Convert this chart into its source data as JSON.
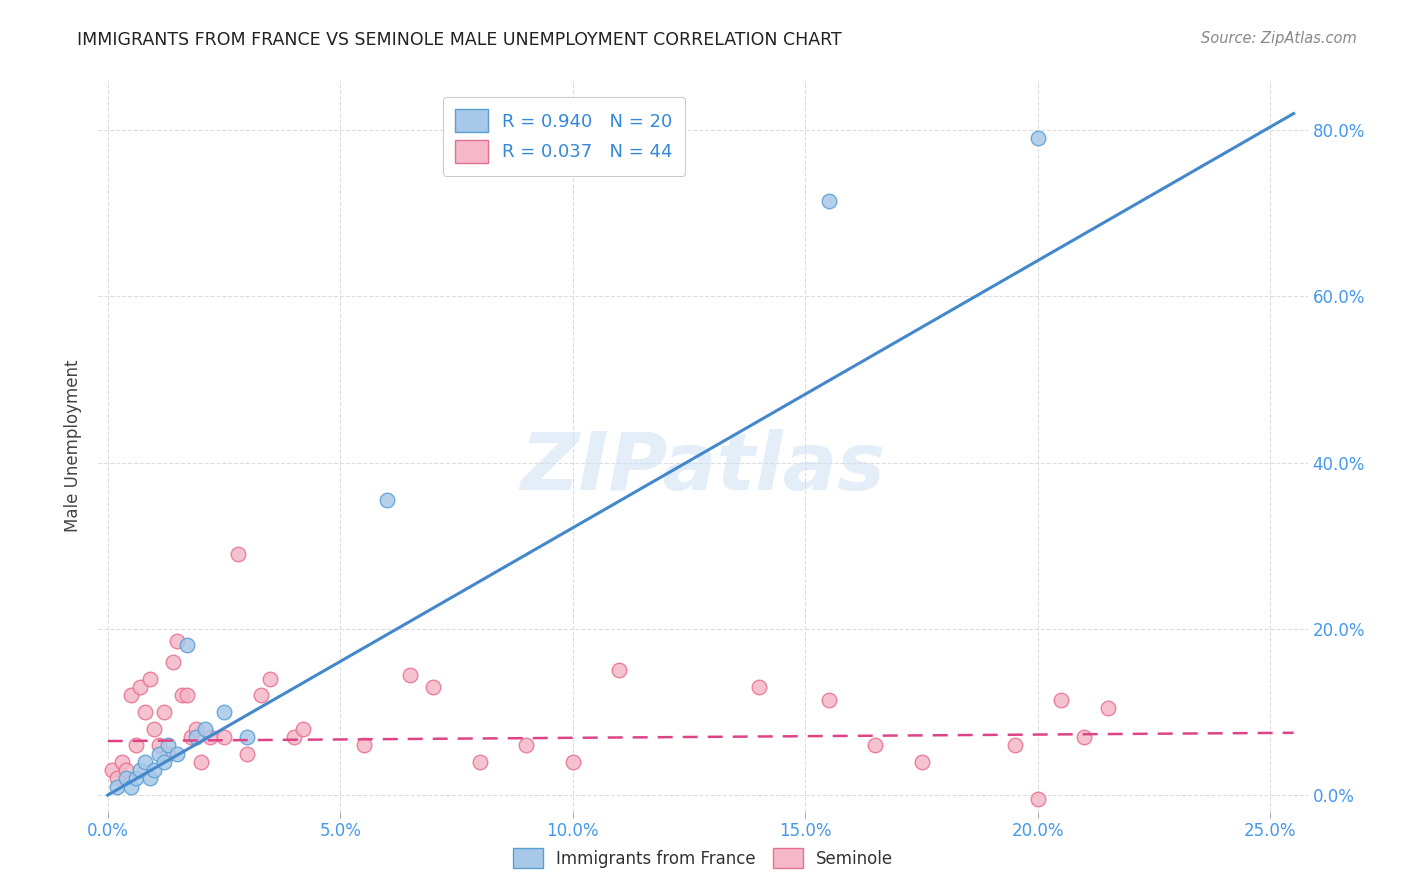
{
  "title": "IMMIGRANTS FROM FRANCE VS SEMINOLE MALE UNEMPLOYMENT CORRELATION CHART",
  "source": "Source: ZipAtlas.com",
  "xlabel_vals": [
    0.0,
    0.05,
    0.1,
    0.15,
    0.2,
    0.25
  ],
  "ylabel_vals": [
    0.0,
    0.2,
    0.4,
    0.6,
    0.8
  ],
  "ylabel_label": "Male Unemployment",
  "xlim": [
    -0.002,
    0.258
  ],
  "ylim": [
    -0.02,
    0.86
  ],
  "blue_R": "0.940",
  "blue_N": "20",
  "pink_R": "0.037",
  "pink_N": "44",
  "legend_label_blue": "Immigrants from France",
  "legend_label_pink": "Seminole",
  "blue_color": "#a8c8e8",
  "pink_color": "#f4b8c8",
  "blue_edge_color": "#5a9fd4",
  "pink_edge_color": "#e87090",
  "blue_line_color": "#4488cc",
  "pink_line_color": "#dd4488",
  "watermark": "ZIPatlas",
  "blue_scatter_x": [
    0.002,
    0.004,
    0.005,
    0.006,
    0.007,
    0.008,
    0.009,
    0.01,
    0.011,
    0.012,
    0.013,
    0.015,
    0.017,
    0.019,
    0.021,
    0.025,
    0.03,
    0.06,
    0.155,
    0.2
  ],
  "blue_scatter_y": [
    0.01,
    0.02,
    0.01,
    0.02,
    0.03,
    0.04,
    0.02,
    0.03,
    0.05,
    0.04,
    0.06,
    0.05,
    0.18,
    0.07,
    0.08,
    0.1,
    0.07,
    0.355,
    0.715,
    0.79
  ],
  "pink_scatter_x": [
    0.001,
    0.002,
    0.003,
    0.004,
    0.005,
    0.006,
    0.007,
    0.008,
    0.009,
    0.01,
    0.011,
    0.012,
    0.013,
    0.014,
    0.015,
    0.016,
    0.017,
    0.018,
    0.019,
    0.02,
    0.022,
    0.025,
    0.028,
    0.03,
    0.033,
    0.035,
    0.04,
    0.042,
    0.055,
    0.065,
    0.07,
    0.08,
    0.09,
    0.1,
    0.11,
    0.14,
    0.155,
    0.165,
    0.175,
    0.195,
    0.2,
    0.205,
    0.21,
    0.215
  ],
  "pink_scatter_y": [
    0.03,
    0.02,
    0.04,
    0.03,
    0.12,
    0.06,
    0.13,
    0.1,
    0.14,
    0.08,
    0.06,
    0.1,
    0.05,
    0.16,
    0.185,
    0.12,
    0.12,
    0.07,
    0.08,
    0.04,
    0.07,
    0.07,
    0.29,
    0.05,
    0.12,
    0.14,
    0.07,
    0.08,
    0.06,
    0.145,
    0.13,
    0.04,
    0.06,
    0.04,
    0.15,
    0.13,
    0.115,
    0.06,
    0.04,
    0.06,
    -0.005,
    0.115,
    0.07,
    0.105
  ],
  "background_color": "#ffffff",
  "grid_color": "#dddddd",
  "blue_line_x": [
    0.0,
    0.255
  ],
  "blue_line_y": [
    0.0,
    0.82
  ],
  "pink_line_x": [
    0.0,
    0.255
  ],
  "pink_line_y": [
    0.065,
    0.075
  ]
}
